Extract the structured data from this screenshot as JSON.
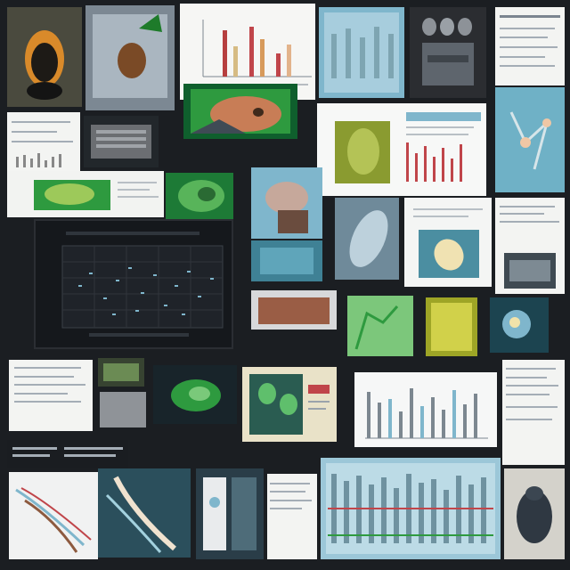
{
  "colors": {
    "background": "#1b1e22",
    "paper": "#f3f4f2",
    "accent_blue": "#7fb6cc",
    "accent_green": "#2e9a3f",
    "accent_red": "#c0454a",
    "accent_olive": "#8a9b30"
  },
  "tiles": [
    {
      "kind": "seed-photo",
      "icon": "seed-icon"
    },
    {
      "kind": "seed-photo",
      "icon": "seed-icon"
    },
    {
      "kind": "bar-chart-sheet",
      "icon": "bar-chart-icon"
    },
    {
      "kind": "blue-bar-chart",
      "icon": "bar-chart-icon"
    },
    {
      "kind": "grayscale-photo",
      "icon": "hand-icon"
    },
    {
      "kind": "document-sheet",
      "icon": "document-icon"
    },
    {
      "kind": "diagram-blue",
      "icon": "diagram-icon"
    },
    {
      "kind": "green-scan",
      "icon": "leaf-icon"
    },
    {
      "kind": "scatter-plot-dark",
      "icon": "scatter-plot-icon"
    },
    {
      "kind": "bar-chart-small",
      "icon": "bar-chart-icon"
    },
    {
      "kind": "film-strip",
      "icon": "film-icon"
    }
  ]
}
